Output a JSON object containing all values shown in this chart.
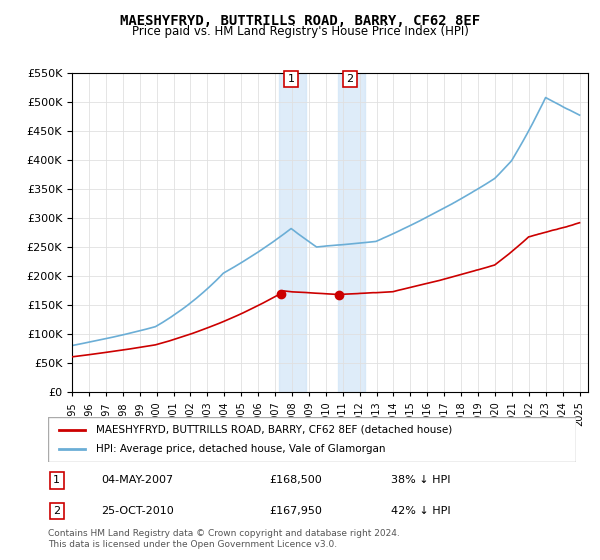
{
  "title": "MAESHYFRYD, BUTTRILLS ROAD, BARRY, CF62 8EF",
  "subtitle": "Price paid vs. HM Land Registry's House Price Index (HPI)",
  "legend_line1": "MAESHYFRYD, BUTTRILLS ROAD, BARRY, CF62 8EF (detached house)",
  "legend_line2": "HPI: Average price, detached house, Vale of Glamorgan",
  "footnote": "Contains HM Land Registry data © Crown copyright and database right 2024.\nThis data is licensed under the Open Government Licence v3.0.",
  "sale1_label": "1",
  "sale1_date": "04-MAY-2007",
  "sale1_price": "£168,500",
  "sale1_hpi": "38% ↓ HPI",
  "sale2_label": "2",
  "sale2_date": "25-OCT-2010",
  "sale2_price": "£167,950",
  "sale2_hpi": "42% ↓ HPI",
  "sale1_x": 2007.35,
  "sale1_y": 168500,
  "sale2_x": 2010.81,
  "sale2_y": 167950,
  "hpi_color": "#6baed6",
  "price_color": "#cc0000",
  "shade1_color": "#d0e4f7",
  "shade2_color": "#d0e4f7",
  "ylim": [
    0,
    550000
  ],
  "xlim": [
    1995,
    2025.5
  ]
}
